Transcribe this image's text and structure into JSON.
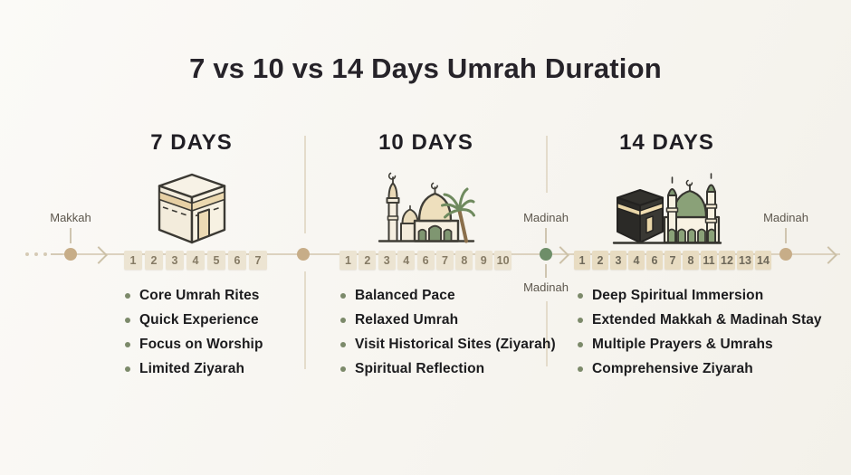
{
  "title": "7 vs 10 vs 14 Days Umrah Duration",
  "palette": {
    "background": "#f7f5f1",
    "title_text": "#262329",
    "timeline_line": "#dcd2bf",
    "marker_tan": "#c7ad88",
    "marker_green": "#6e8e69",
    "day_box_bg": "#ece4d2",
    "day_box_bg_dark": "#e8dcc2",
    "day_box_text": "#867b65",
    "bullet_dot": "#7c8a6a",
    "bullet_text": "#1c1c1e",
    "city_label_text": "#5c564c",
    "icon_outline": "#3b3933",
    "icon_cream": "#f5efe0",
    "icon_gold_band": "#e6cfa4",
    "icon_green": "#7f9671",
    "icon_dark_kaaba": "#32312d"
  },
  "timeline": {
    "start_city": "Makkah",
    "mid_city_top": "Madinah",
    "mid_city_bottom": "Madinah",
    "end_city": "Madinah"
  },
  "columns": [
    {
      "header": "7 DAYS",
      "icon": "kaaba-icon",
      "days": [
        "1",
        "2",
        "3",
        "4",
        "5",
        "6",
        "7"
      ],
      "bullets": [
        "Core Umrah Rites",
        "Quick Experience",
        "Focus on Worship",
        "Limited Ziyarah"
      ]
    },
    {
      "header": "10 DAYS",
      "icon": "mosque-palm-icon",
      "days": [
        "1",
        "2",
        "3",
        "4",
        "6",
        "7",
        "8",
        "9",
        "10"
      ],
      "bullets": [
        "Balanced Pace",
        "Relaxed Umrah",
        "Visit Historical Sites (Ziyarah)",
        "Spiritual Reflection"
      ]
    },
    {
      "header": "14 DAYS",
      "icon": "kaaba-mosque-icon",
      "days": [
        "1",
        "2",
        "3",
        "4",
        "6",
        "7",
        "8",
        "11",
        "12",
        "13",
        "14"
      ],
      "bullets": [
        "Deep Spiritual Immersion",
        "Extended Makkah & Madinah Stay",
        "Multiple Prayers & Umrahs",
        "Comprehensive Ziyarah"
      ]
    }
  ]
}
